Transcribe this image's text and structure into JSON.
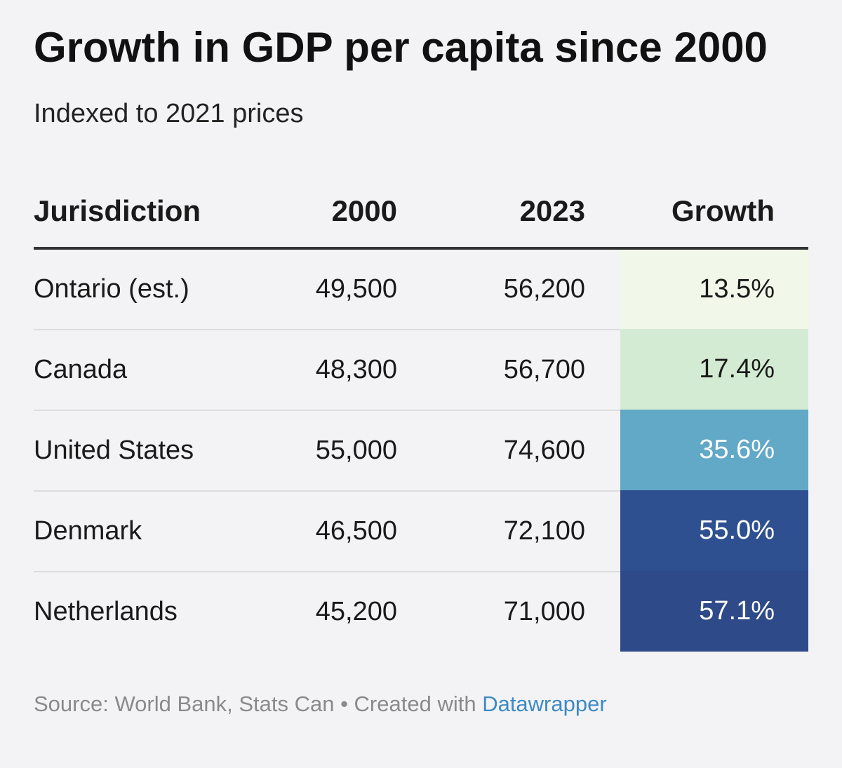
{
  "chart_data": {
    "type": "table",
    "title": "Growth in GDP per capita since 2000",
    "subtitle": "Indexed to 2021 prices",
    "columns": [
      "Jurisdiction",
      "2000",
      "2023",
      "Growth"
    ],
    "rows": [
      {
        "name": "Ontario (est.)",
        "y2000": "49,500",
        "y2023": "56,200",
        "growth": "13.5%",
        "growth_value": 13.5,
        "bg": "#f1f8e9",
        "fg": "#1a1a1a"
      },
      {
        "name": "Canada",
        "y2000": "48,300",
        "y2023": "56,700",
        "growth": "17.4%",
        "growth_value": 17.4,
        "bg": "#d4ebd3",
        "fg": "#1a1a1a"
      },
      {
        "name": "United States",
        "y2000": "55,000",
        "y2023": "74,600",
        "growth": "35.6%",
        "growth_value": 35.6,
        "bg": "#62a8c7",
        "fg": "#ffffff"
      },
      {
        "name": "Denmark",
        "y2000": "46,500",
        "y2023": "72,100",
        "growth": "55.0%",
        "growth_value": 55.0,
        "bg": "#2e5090",
        "fg": "#ffffff"
      },
      {
        "name": "Netherlands",
        "y2000": "45,200",
        "y2023": "71,000",
        "growth": "57.1%",
        "growth_value": 57.1,
        "bg": "#2e4a88",
        "fg": "#ffffff"
      }
    ],
    "source": "Source: World Bank, Stats Can • Created with ",
    "credit": "Datawrapper",
    "colors": {
      "link": "#3d8ac4",
      "header_rule": "#333333"
    }
  }
}
